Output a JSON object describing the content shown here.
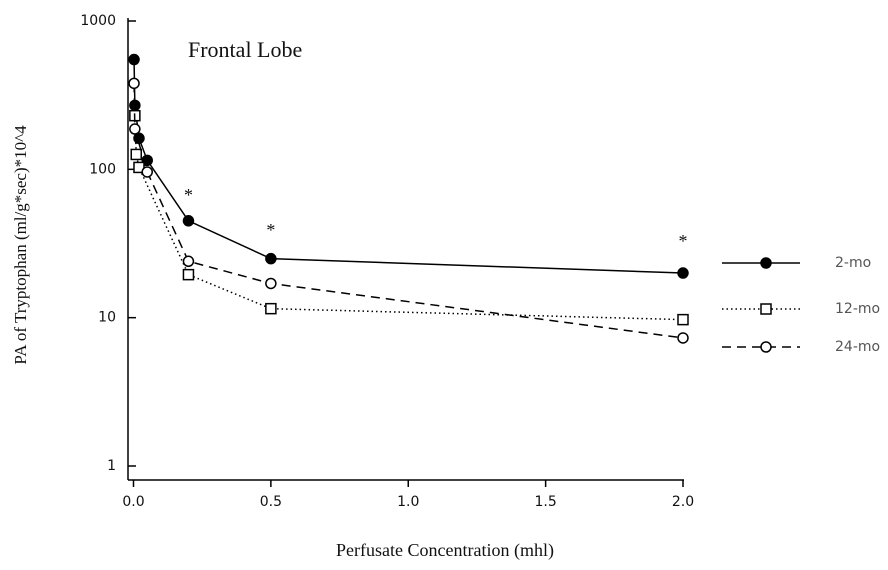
{
  "chart_data": {
    "type": "line",
    "title": "Frontal Lobe",
    "xlabel": "Perfusate Concentration (mhl)",
    "ylabel": "PA of Tryptophan (ml/g*sec)*10^4",
    "log_y": true,
    "xlim": [
      -0.02,
      2.0
    ],
    "ylim": [
      1,
      1000
    ],
    "xticks": [
      {
        "value": 0,
        "label": "0.0"
      },
      {
        "value": 0.5,
        "label": "0.5"
      },
      {
        "value": 1,
        "label": "1.0"
      },
      {
        "value": 1.5,
        "label": "1.5"
      },
      {
        "value": 2,
        "label": "2.0"
      }
    ],
    "yticks": [
      1,
      10,
      100,
      1000
    ],
    "legend": "right",
    "series": [
      {
        "name": "2-mo",
        "color": "#000000",
        "marker": "filled-circle",
        "dash": "solid",
        "x": [
          0.002,
          0.005,
          0.02,
          0.05,
          0.2,
          0.5,
          2.0
        ],
        "values": [
          550,
          270,
          162,
          115,
          45,
          25,
          20
        ]
      },
      {
        "name": "12-mo",
        "color": "#000000",
        "marker": "open-square",
        "dash": "dotted",
        "x": [
          0.005,
          0.01,
          0.02,
          0.2,
          0.5,
          2.0
        ],
        "values": [
          230,
          126,
          103,
          19.5,
          11.5,
          9.7
        ]
      },
      {
        "name": "24-mo",
        "color": "#000000",
        "marker": "open-circle",
        "dash": "dashed",
        "x": [
          0.002,
          0.005,
          0.05,
          0.2,
          0.5,
          2.0
        ],
        "values": [
          380,
          187,
          96,
          24,
          17,
          7.3
        ]
      }
    ],
    "annotations": [
      {
        "text": "*",
        "x": 0.2,
        "y": 65
      },
      {
        "text": "*",
        "x": 0.5,
        "y": 38
      },
      {
        "text": "*",
        "x": 2.0,
        "y": 32
      }
    ]
  }
}
